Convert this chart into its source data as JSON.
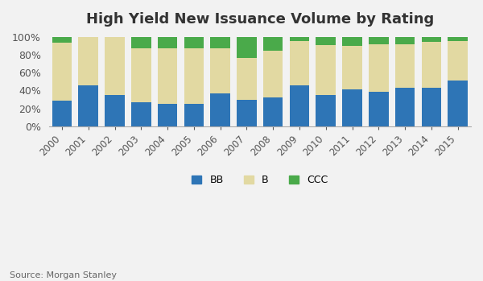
{
  "years": [
    "2000",
    "2001",
    "2002",
    "2003",
    "2004",
    "2005",
    "2006",
    "2007",
    "2008",
    "2009",
    "2010",
    "2011",
    "2012",
    "2013",
    "2014",
    "2015"
  ],
  "BB": [
    29,
    46,
    35,
    27,
    25,
    25,
    37,
    30,
    32,
    46,
    35,
    41,
    39,
    43,
    43,
    51
  ],
  "B": [
    64,
    54,
    65,
    60,
    62,
    62,
    50,
    46,
    52,
    49,
    56,
    49,
    53,
    49,
    51,
    44
  ],
  "CCC": [
    7,
    0,
    0,
    13,
    13,
    13,
    13,
    24,
    16,
    5,
    9,
    10,
    8,
    8,
    6,
    5
  ],
  "BB_color": "#2e75b6",
  "B_color": "#e2d9a2",
  "CCC_color": "#4aaa4a",
  "title": "High Yield New Issuance Volume by Rating",
  "source": "Source: Morgan Stanley",
  "ytick_labels": [
    "0%",
    "20%",
    "40%",
    "60%",
    "80%",
    "100%"
  ],
  "ytick_values": [
    0,
    20,
    40,
    60,
    80,
    100
  ],
  "bg_color": "#f2f2f2",
  "title_fontsize": 13,
  "legend_labels": [
    "BB",
    "B",
    "CCC"
  ]
}
